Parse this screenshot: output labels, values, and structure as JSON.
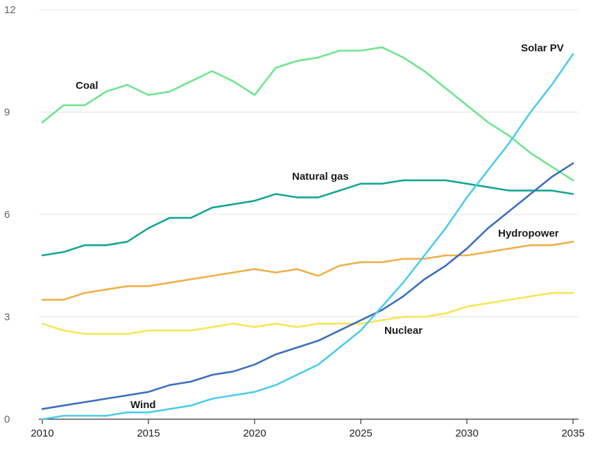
{
  "chart_data": {
    "type": "line",
    "title": "",
    "xlabel": "",
    "ylabel": "",
    "xlim": [
      2010,
      2035
    ],
    "ylim": [
      0,
      12
    ],
    "x_ticks": [
      "2010",
      "2015",
      "2020",
      "2025",
      "2030",
      "2035"
    ],
    "y_ticks": [
      "0",
      "3",
      "6",
      "9",
      "12"
    ],
    "grid": "horizontal",
    "x": [
      2010,
      2011,
      2012,
      2013,
      2014,
      2015,
      2016,
      2017,
      2018,
      2019,
      2020,
      2021,
      2022,
      2023,
      2024,
      2025,
      2026,
      2027,
      2028,
      2029,
      2030,
      2031,
      2032,
      2033,
      2034,
      2035
    ],
    "series": [
      {
        "name": "Coal",
        "color": "#6ee58c",
        "values": [
          8.7,
          9.2,
          9.2,
          9.6,
          9.8,
          9.5,
          9.6,
          9.9,
          10.2,
          9.9,
          9.5,
          10.3,
          10.5,
          10.6,
          10.8,
          10.8,
          10.9,
          10.6,
          10.2,
          9.7,
          9.2,
          8.7,
          8.3,
          7.8,
          7.4,
          7.0
        ]
      },
      {
        "name": "Natural gas",
        "color": "#14a694",
        "values": [
          4.8,
          4.9,
          5.1,
          5.1,
          5.2,
          5.6,
          5.9,
          5.9,
          6.2,
          6.3,
          6.4,
          6.6,
          6.5,
          6.5,
          6.7,
          6.9,
          6.9,
          7.0,
          7.0,
          7.0,
          6.9,
          6.8,
          6.7,
          6.7,
          6.7,
          6.6
        ]
      },
      {
        "name": "Hydropower",
        "color": "#f0b04a",
        "values": [
          3.5,
          3.5,
          3.7,
          3.8,
          3.9,
          3.9,
          4.0,
          4.1,
          4.2,
          4.3,
          4.4,
          4.3,
          4.4,
          4.2,
          4.5,
          4.6,
          4.6,
          4.7,
          4.7,
          4.8,
          4.8,
          4.9,
          5.0,
          5.1,
          5.1,
          5.2
        ]
      },
      {
        "name": "Nuclear",
        "color": "#f7e655",
        "values": [
          2.8,
          2.6,
          2.5,
          2.5,
          2.5,
          2.6,
          2.6,
          2.6,
          2.7,
          2.8,
          2.7,
          2.8,
          2.7,
          2.8,
          2.8,
          2.8,
          2.9,
          3.0,
          3.0,
          3.1,
          3.3,
          3.4,
          3.5,
          3.6,
          3.7,
          3.7
        ]
      },
      {
        "name": "Wind",
        "color": "#3b6ec0",
        "values": [
          0.3,
          0.4,
          0.5,
          0.6,
          0.7,
          0.8,
          1.0,
          1.1,
          1.3,
          1.4,
          1.6,
          1.9,
          2.1,
          2.3,
          2.6,
          2.9,
          3.2,
          3.6,
          4.1,
          4.5,
          5.0,
          5.6,
          6.1,
          6.6,
          7.1,
          7.5
        ]
      },
      {
        "name": "Solar PV",
        "color": "#4ccbee",
        "values": [
          0.0,
          0.1,
          0.1,
          0.1,
          0.2,
          0.2,
          0.3,
          0.4,
          0.6,
          0.7,
          0.8,
          1.0,
          1.3,
          1.6,
          2.1,
          2.6,
          3.3,
          4.0,
          4.8,
          5.6,
          6.5,
          7.3,
          8.1,
          9.0,
          9.8,
          10.7
        ]
      }
    ],
    "annotations": [
      "Coal",
      "Natural gas",
      "Hydropower",
      "Nuclear",
      "Wind",
      "Solar PV"
    ]
  }
}
